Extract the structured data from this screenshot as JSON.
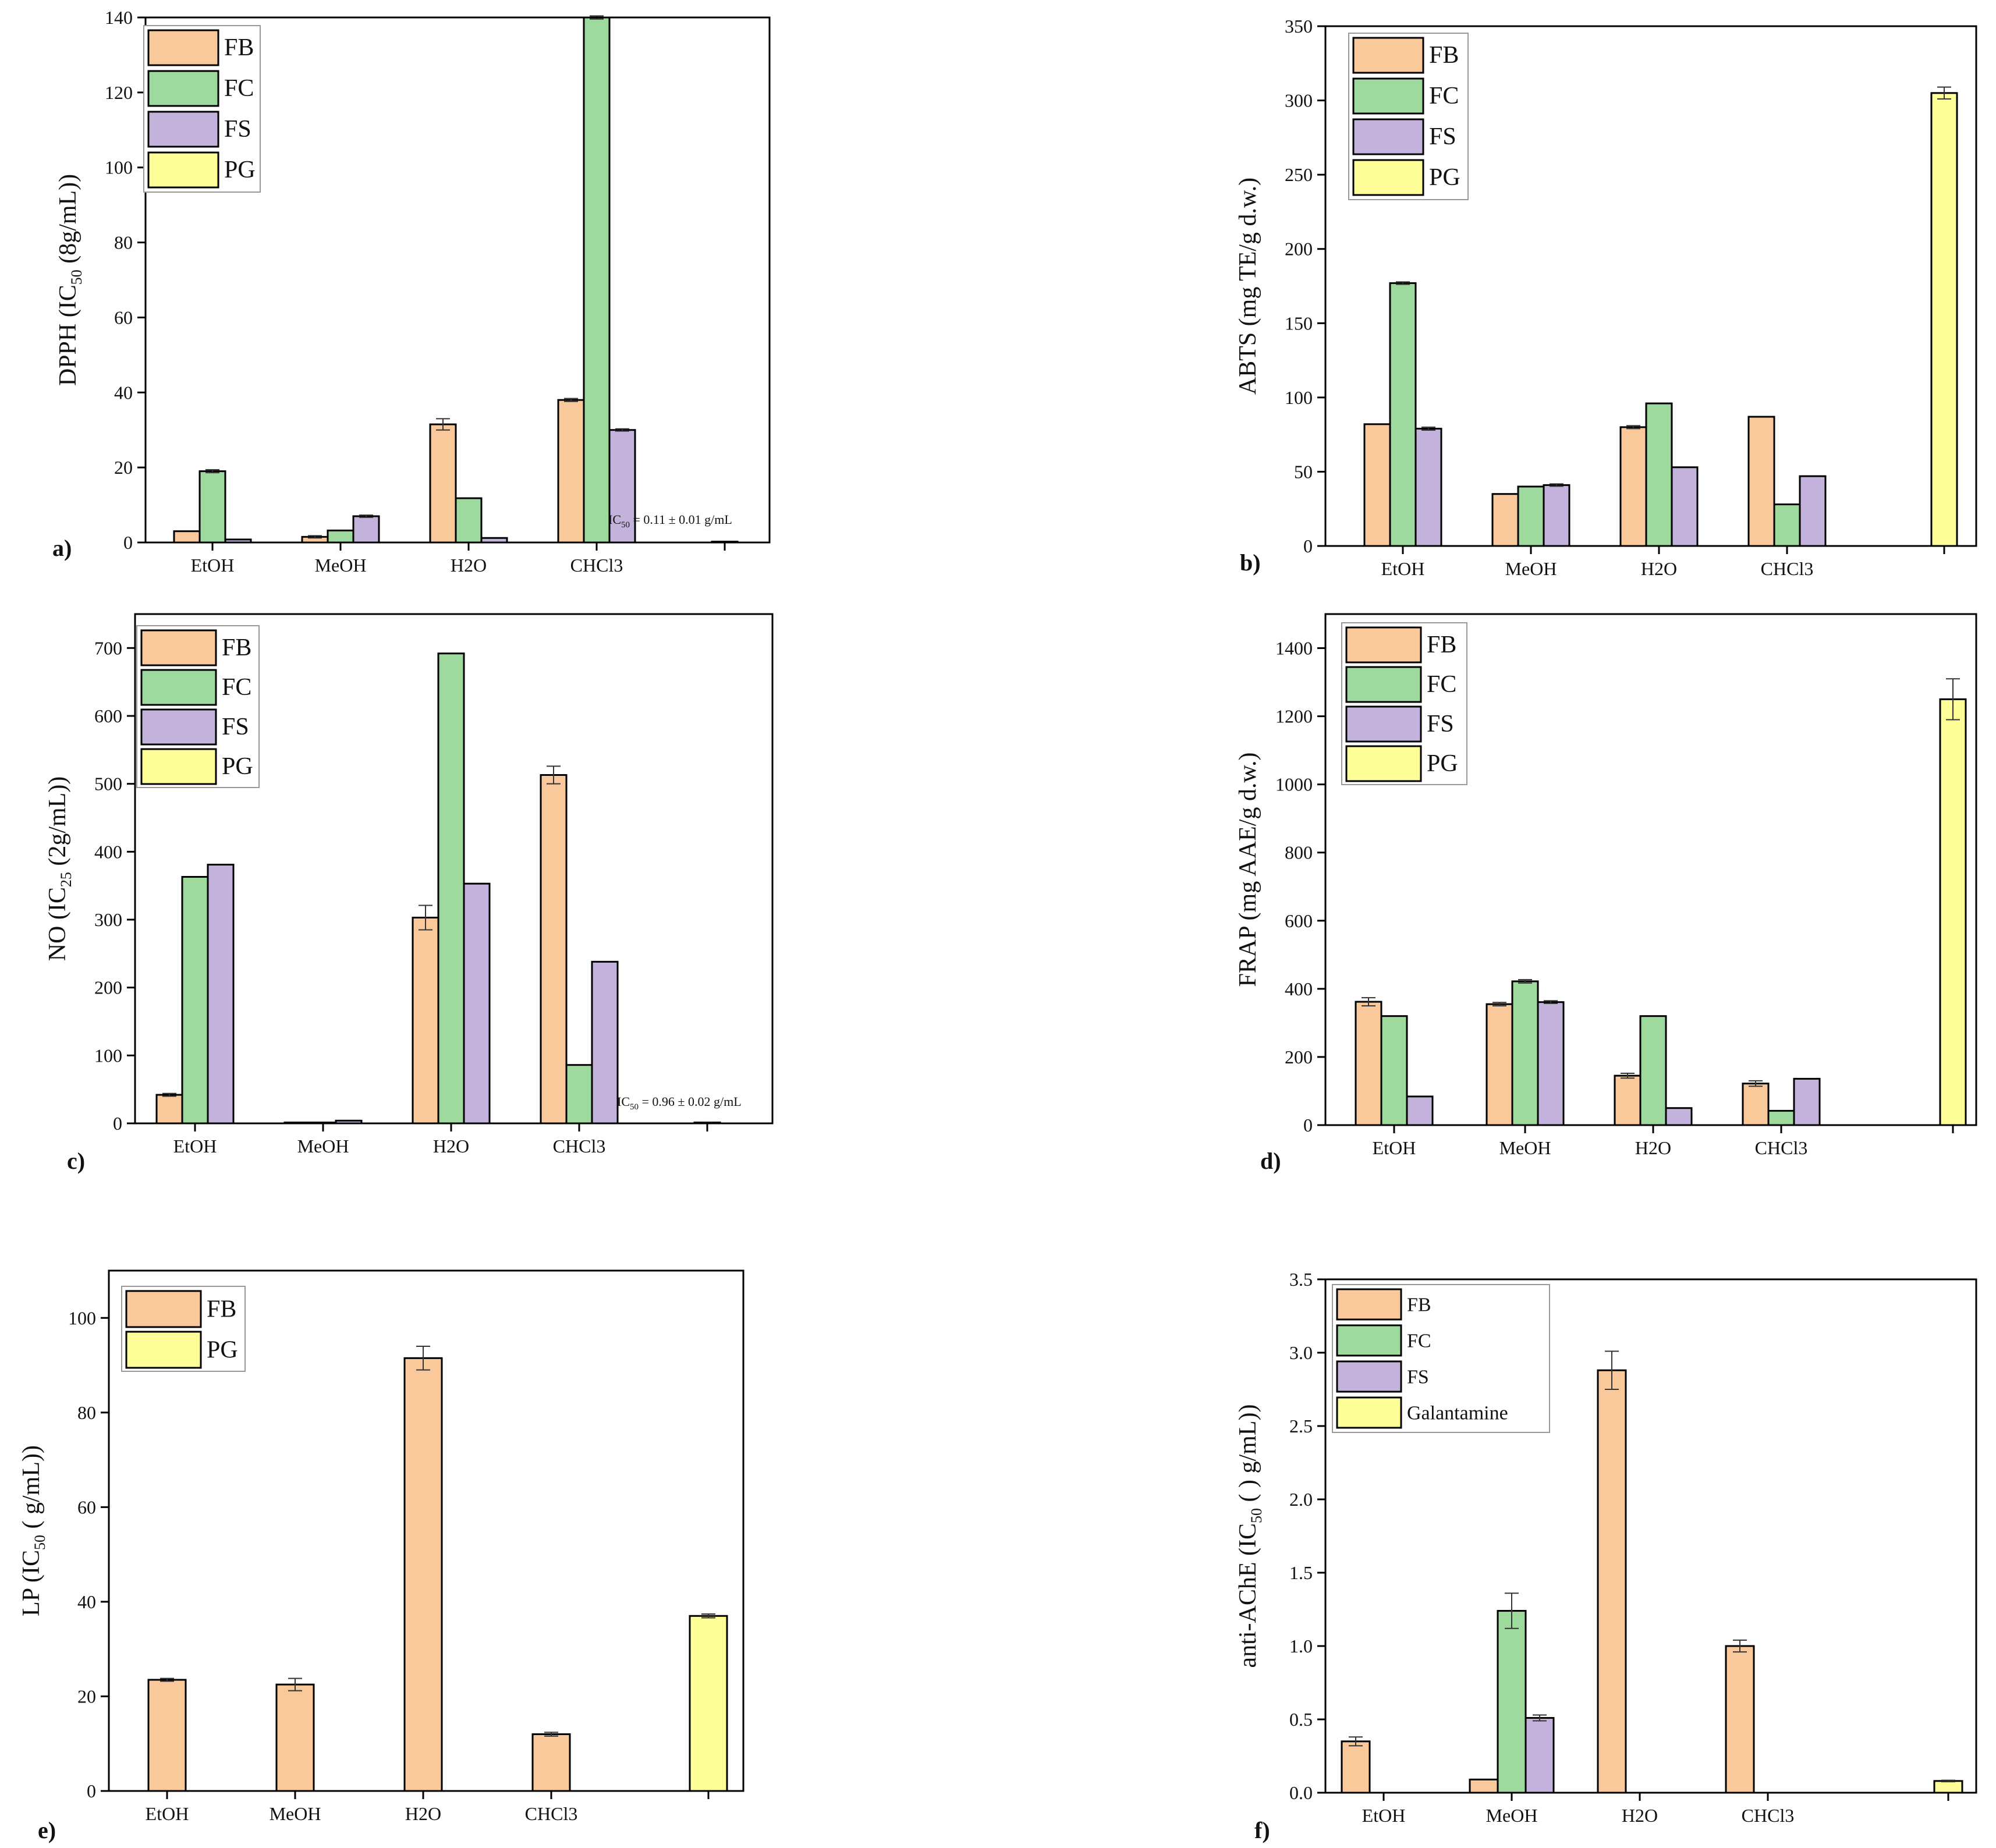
{
  "colors": {
    "FB": "#f9c89b",
    "FC": "#9ed99e",
    "FS": "#c3b3dc",
    "PG": "#ffff99",
    "Galantamine": "#ffff99",
    "axis": "#000000"
  },
  "chart_data": [
    {
      "id": "a",
      "panel_label": "a)",
      "type": "bar",
      "ylabel": {
        "main": "DPPH (IC",
        "sub": "50",
        "rest": " (8g/mL))"
      },
      "ylim": [
        0,
        140
      ],
      "yticks": [
        0,
        20,
        40,
        60,
        80,
        100,
        120,
        140
      ],
      "categories": [
        "EtOH",
        "MeOH",
        "H2O",
        "CHCl3",
        ""
      ],
      "legend": {
        "entries": [
          "FB",
          "FC",
          "FS",
          "PG"
        ],
        "placement": "top-left"
      },
      "note": {
        "main": "IC",
        "sub": "50",
        "rest": " = 0.11 ± 0.01  g/mL"
      },
      "series": [
        {
          "name": "FB",
          "values": [
            3,
            1.5,
            31.5,
            38,
            null
          ],
          "errors": [
            0,
            0.3,
            1.5,
            0.4,
            null
          ]
        },
        {
          "name": "FC",
          "values": [
            19,
            3.2,
            11.8,
            140,
            null
          ],
          "errors": [
            0.4,
            0,
            0,
            0.4,
            null
          ]
        },
        {
          "name": "FS",
          "values": [
            0.8,
            7,
            1.2,
            30,
            null
          ],
          "errors": [
            0,
            0.3,
            0,
            0.3,
            null
          ]
        },
        {
          "name": "PG",
          "values": [
            null,
            null,
            null,
            null,
            0.11
          ],
          "errors": [
            null,
            null,
            null,
            null,
            0.01
          ]
        }
      ]
    },
    {
      "id": "b",
      "panel_label": "b)",
      "type": "bar",
      "ylabel": {
        "main": "ABTS (mg TE/g d.w.)",
        "sub": "",
        "rest": ""
      },
      "ylim": [
        0,
        350
      ],
      "yticks": [
        0,
        50,
        100,
        150,
        200,
        250,
        300,
        350
      ],
      "categories": [
        "EtOH",
        "MeOH",
        "H2O",
        "CHCl3",
        ""
      ],
      "legend": {
        "entries": [
          "FB",
          "FC",
          "FS",
          "PG"
        ],
        "placement": "top-left"
      },
      "series": [
        {
          "name": "FB",
          "values": [
            82,
            35,
            80,
            87,
            null
          ],
          "errors": [
            0,
            0,
            1,
            0,
            null
          ]
        },
        {
          "name": "FC",
          "values": [
            177,
            40,
            96,
            28,
            null
          ],
          "errors": [
            0.8,
            0,
            0,
            0,
            null
          ]
        },
        {
          "name": "FS",
          "values": [
            79,
            41,
            53,
            47,
            null
          ],
          "errors": [
            1,
            0.8,
            0,
            0,
            null
          ]
        },
        {
          "name": "PG",
          "values": [
            null,
            null,
            null,
            null,
            305
          ],
          "errors": [
            null,
            null,
            null,
            null,
            4
          ]
        }
      ]
    },
    {
      "id": "c",
      "panel_label": "c)",
      "type": "bar",
      "ylabel": {
        "main": "NO (IC",
        "sub": "25",
        "rest": " (2g/mL))"
      },
      "ylim": [
        0,
        750
      ],
      "yticks": [
        0,
        100,
        200,
        300,
        400,
        500,
        600,
        700
      ],
      "categories": [
        "EtOH",
        "MeOH",
        "H2O",
        "CHCl3",
        ""
      ],
      "legend": {
        "entries": [
          "FB",
          "FC",
          "FS",
          "PG"
        ],
        "placement": "top-left"
      },
      "note": {
        "main": "IC",
        "sub": "50",
        "rest": " = 0.96 ± 0.02   g/mL"
      },
      "series": [
        {
          "name": "FB",
          "values": [
            42,
            0,
            303,
            513,
            null
          ],
          "errors": [
            2,
            0,
            18,
            13,
            null
          ]
        },
        {
          "name": "FC",
          "values": [
            363,
            0,
            692,
            86,
            null
          ],
          "errors": [
            0,
            0,
            0,
            0,
            null
          ]
        },
        {
          "name": "FS",
          "values": [
            381,
            4,
            353,
            238,
            null
          ],
          "errors": [
            0,
            0,
            0,
            0,
            null
          ]
        },
        {
          "name": "PG",
          "values": [
            null,
            null,
            null,
            null,
            0.96
          ],
          "errors": [
            null,
            null,
            null,
            null,
            0.02
          ]
        }
      ]
    },
    {
      "id": "d",
      "panel_label": "d)",
      "type": "bar",
      "ylabel": {
        "main": "FRAP (mg AAE/g d.w.)",
        "sub": "",
        "rest": ""
      },
      "ylim": [
        0,
        1500
      ],
      "yticks": [
        0,
        200,
        400,
        600,
        800,
        1000,
        1200,
        1400
      ],
      "categories": [
        "EtOH",
        "MeOH",
        "H2O",
        "CHCl3",
        ""
      ],
      "legend": {
        "entries": [
          "FB",
          "FC",
          "FS",
          "PG"
        ],
        "placement": "top-left"
      },
      "series": [
        {
          "name": "FB",
          "values": [
            362,
            355,
            145,
            122,
            null
          ],
          "errors": [
            12,
            5,
            7,
            8,
            null
          ]
        },
        {
          "name": "FC",
          "values": [
            320,
            422,
            320,
            42,
            null
          ],
          "errors": [
            0,
            5,
            0,
            0,
            null
          ]
        },
        {
          "name": "FS",
          "values": [
            84,
            361,
            50,
            136,
            null
          ],
          "errors": [
            0,
            4,
            0,
            0,
            null
          ]
        },
        {
          "name": "PG",
          "values": [
            null,
            null,
            null,
            null,
            1250
          ],
          "errors": [
            null,
            null,
            null,
            null,
            60
          ]
        }
      ]
    },
    {
      "id": "e",
      "panel_label": "e)",
      "type": "bar",
      "ylabel": {
        "main": "LP (IC",
        "sub": "50",
        "rest": " (  g/mL))"
      },
      "ylim": [
        0,
        110
      ],
      "yticks": [
        0,
        20,
        40,
        60,
        80,
        100
      ],
      "categories": [
        "EtOH",
        "MeOH",
        "H2O",
        "CHCl3",
        ""
      ],
      "legend": {
        "entries": [
          "FB",
          "PG"
        ],
        "placement": "top-left"
      },
      "series": [
        {
          "name": "FB",
          "values": [
            23.5,
            22.5,
            91.5,
            12,
            null
          ],
          "errors": [
            0.3,
            1.3,
            2.5,
            0.4,
            null
          ]
        },
        {
          "name": "PG",
          "values": [
            null,
            null,
            null,
            null,
            37
          ],
          "errors": [
            null,
            null,
            null,
            null,
            0.4
          ]
        }
      ]
    },
    {
      "id": "f",
      "panel_label": "f)",
      "type": "bar",
      "ylabel": {
        "main": "anti-AChE (IC",
        "sub": "50",
        "rest": " ( ) g/mL))"
      },
      "ylim": [
        0,
        3.5
      ],
      "yticks": [
        "0.0",
        "0.5",
        "1.0",
        "1.5",
        "2.0",
        "2.5",
        "3.0",
        "3.5"
      ],
      "categories": [
        "EtOH",
        "MeOH",
        "H2O",
        "CHCl3",
        ""
      ],
      "legend": {
        "entries": [
          "FB",
          "FC",
          "FS",
          "Galantamine"
        ],
        "placement": "top-left"
      },
      "series": [
        {
          "name": "FB",
          "values": [
            0.35,
            0.09,
            2.88,
            1.0,
            null
          ],
          "errors": [
            0.03,
            0,
            0.13,
            0.04,
            null
          ]
        },
        {
          "name": "FC",
          "values": [
            null,
            1.24,
            null,
            null,
            null
          ],
          "errors": [
            null,
            0.12,
            null,
            null,
            null
          ]
        },
        {
          "name": "FS",
          "values": [
            null,
            0.51,
            null,
            null,
            null
          ],
          "errors": [
            null,
            0.02,
            null,
            null,
            null
          ]
        },
        {
          "name": "Galantamine",
          "values": [
            null,
            null,
            null,
            null,
            0.08
          ],
          "errors": [
            null,
            null,
            null,
            null,
            0.005
          ]
        }
      ]
    }
  ]
}
